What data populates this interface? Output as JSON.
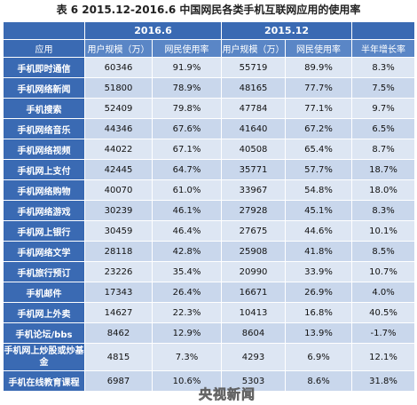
{
  "title": "表 6 2015.12-2016.6 中国网民各类手机互联网应用的使用率",
  "header": {
    "period_a": "2016.6",
    "period_b": "2015.12",
    "col_app": "应用",
    "col_users_a": "用户规模（万）",
    "col_rate_a": "网民使用率",
    "col_users_b": "用户规模（万）",
    "col_rate_b": "网民使用率",
    "col_growth": "半年增长率"
  },
  "rows": [
    {
      "app": "手机即时通信",
      "users_a": "60346",
      "rate_a": "91.9%",
      "users_b": "55719",
      "rate_b": "89.9%",
      "growth": "8.3%"
    },
    {
      "app": "手机网络新闻",
      "users_a": "51800",
      "rate_a": "78.9%",
      "users_b": "48165",
      "rate_b": "77.7%",
      "growth": "7.5%"
    },
    {
      "app": "手机搜索",
      "users_a": "52409",
      "rate_a": "79.8%",
      "users_b": "47784",
      "rate_b": "77.1%",
      "growth": "9.7%"
    },
    {
      "app": "手机网络音乐",
      "users_a": "44346",
      "rate_a": "67.6%",
      "users_b": "41640",
      "rate_b": "67.2%",
      "growth": "6.5%"
    },
    {
      "app": "手机网络视频",
      "users_a": "44022",
      "rate_a": "67.1%",
      "users_b": "40508",
      "rate_b": "65.4%",
      "growth": "8.7%"
    },
    {
      "app": "手机网上支付",
      "users_a": "42445",
      "rate_a": "64.7%",
      "users_b": "35771",
      "rate_b": "57.7%",
      "growth": "18.7%"
    },
    {
      "app": "手机网络购物",
      "users_a": "40070",
      "rate_a": "61.0%",
      "users_b": "33967",
      "rate_b": "54.8%",
      "growth": "18.0%"
    },
    {
      "app": "手机网络游戏",
      "users_a": "30239",
      "rate_a": "46.1%",
      "users_b": "27928",
      "rate_b": "45.1%",
      "growth": "8.3%"
    },
    {
      "app": "手机网上银行",
      "users_a": "30459",
      "rate_a": "46.4%",
      "users_b": "27675",
      "rate_b": "44.6%",
      "growth": "10.1%"
    },
    {
      "app": "手机网络文学",
      "users_a": "28118",
      "rate_a": "42.8%",
      "users_b": "25908",
      "rate_b": "41.8%",
      "growth": "8.5%"
    },
    {
      "app": "手机旅行预订",
      "users_a": "23226",
      "rate_a": "35.4%",
      "users_b": "20990",
      "rate_b": "33.9%",
      "growth": "10.7%"
    },
    {
      "app": "手机邮件",
      "users_a": "17343",
      "rate_a": "26.4%",
      "users_b": "16671",
      "rate_b": "26.9%",
      "growth": "4.0%"
    },
    {
      "app": "手机网上外卖",
      "users_a": "14627",
      "rate_a": "22.3%",
      "users_b": "10413",
      "rate_b": "16.8%",
      "growth": "40.5%"
    },
    {
      "app": "手机论坛/bbs",
      "users_a": "8462",
      "rate_a": "12.9%",
      "users_b": "8604",
      "rate_b": "13.9%",
      "growth": "-1.7%"
    },
    {
      "app": "手机网上炒股或炒基金",
      "users_a": "4815",
      "rate_a": "7.3%",
      "users_b": "4293",
      "rate_b": "6.9%",
      "growth": "12.1%"
    },
    {
      "app": "手机在线教育课程",
      "users_a": "6987",
      "rate_a": "10.6%",
      "users_b": "5303",
      "rate_b": "8.6%",
      "growth": "31.8%"
    }
  ],
  "watermark": "央视新闻"
}
